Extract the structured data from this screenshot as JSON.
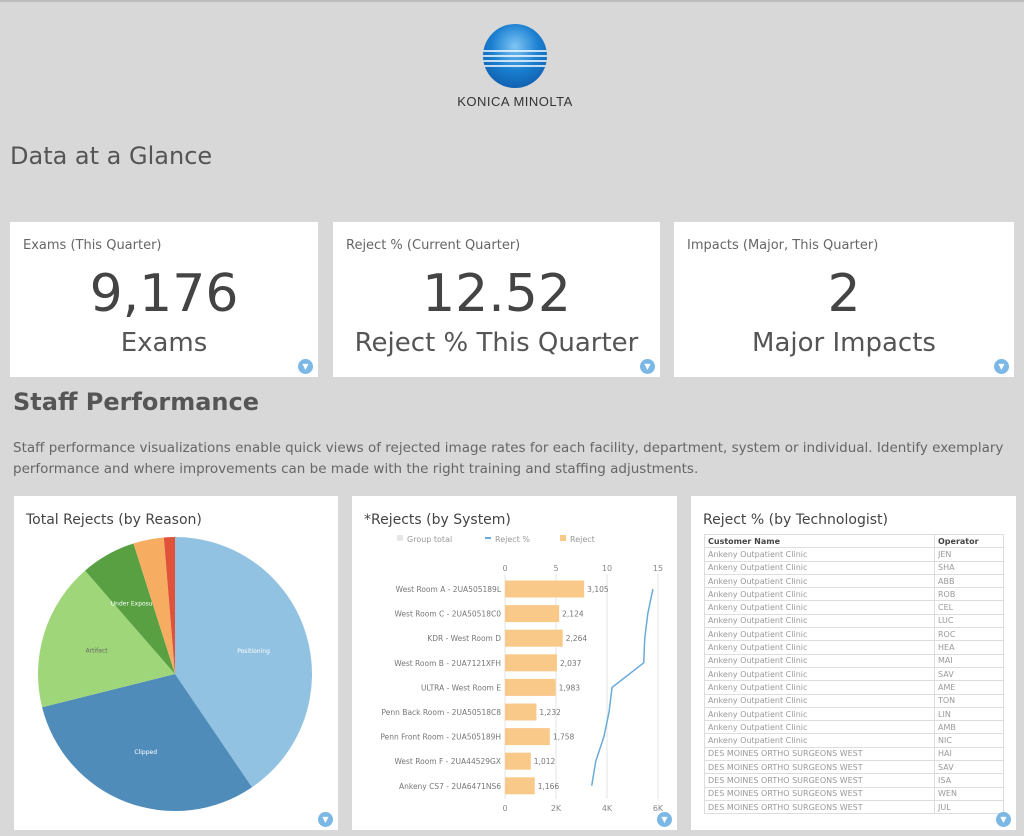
{
  "logo": {
    "text": "KONICA MINOLTA"
  },
  "page_title": "Data at a Glance",
  "kpis": [
    {
      "title": "Exams (This Quarter)",
      "value": "9,176",
      "unit": "Exams"
    },
    {
      "title": "Reject % (Current Quarter)",
      "value": "12.52",
      "unit": "Reject % This Quarter"
    },
    {
      "title": "Impacts (Major, This Quarter)",
      "value": "2",
      "unit": "Major Impacts"
    }
  ],
  "staff": {
    "title": "Staff Performance",
    "description": "Staff performance visualizations enable quick views of rejected image rates for each facility, department, system or individual. Identify exemplary performance and where improvements can be made with the right training and staffing adjustments."
  },
  "chart_data": [
    {
      "type": "pie",
      "title": "Total Rejects (by Reason)",
      "categories": [
        "Positioning",
        "Clipped",
        "Artifact",
        "Under Exposure",
        "",
        ""
      ],
      "values": [
        40.5,
        30.6,
        17.5,
        6.5,
        3.6,
        1.3
      ],
      "colors": [
        "#92c2e2",
        "#4f8cb9",
        "#a0d67a",
        "#58a042",
        "#f6ad62",
        "#e0533a"
      ]
    },
    {
      "type": "bar",
      "title": "*Rejects (by System)",
      "legend": [
        "Group total",
        "Reject %",
        "Reject"
      ],
      "legend_placement": "top",
      "categories": [
        "West Room A - 2UA505189L",
        "West Room C - 2UA50518C0",
        "KDR - West Room D",
        "West Room B  - 2UA7121XFH",
        "ULTRA - West Room E",
        "Penn Back Room - 2UA50518C8",
        "Penn Front Room -  2UA505189H",
        "West Room F - 2UA44529GX",
        "Ankeny CS7 - 2UA6471NS6"
      ],
      "series": [
        {
          "name": "Reject",
          "values": [
            3105,
            2124,
            2264,
            2037,
            1983,
            1232,
            1758,
            1012,
            1166
          ],
          "labels": [
            "3,105",
            "2,124",
            "2,264",
            "2,037",
            "1,983",
            "1,232",
            "1,758",
            "1,012",
            "1,166"
          ],
          "color": "#f9c98a"
        },
        {
          "name": "Reject %",
          "values": [
            14.5,
            14.0,
            13.7,
            13.6,
            10.5,
            10.2,
            9.7,
            8.9,
            8.5
          ],
          "color": "#6aaad8"
        }
      ],
      "x_bottom": {
        "range": [
          0,
          6000
        ],
        "ticks": [
          "0",
          "2K",
          "4K",
          "6K"
        ]
      },
      "x_top": {
        "range": [
          0,
          15
        ],
        "ticks": [
          "0",
          "5",
          "10",
          "15"
        ]
      },
      "grid": true
    },
    {
      "type": "table",
      "title": "Reject % (by Technologist)",
      "columns": [
        "Customer Name",
        "Operator"
      ],
      "rows": [
        [
          "Ankeny Outpatient Clinic",
          "JEN"
        ],
        [
          "Ankeny Outpatient Clinic",
          "SHA"
        ],
        [
          "Ankeny Outpatient Clinic",
          "ABB"
        ],
        [
          "Ankeny Outpatient Clinic",
          "ROB"
        ],
        [
          "Ankeny Outpatient Clinic",
          "CEL"
        ],
        [
          "Ankeny Outpatient Clinic",
          "LUC"
        ],
        [
          "Ankeny Outpatient Clinic",
          "ROC"
        ],
        [
          "Ankeny Outpatient Clinic",
          "HEA"
        ],
        [
          "Ankeny Outpatient Clinic",
          "MAI"
        ],
        [
          "Ankeny Outpatient Clinic",
          "SAV"
        ],
        [
          "Ankeny Outpatient Clinic",
          "AME"
        ],
        [
          "Ankeny Outpatient Clinic",
          "TON"
        ],
        [
          "Ankeny Outpatient Clinic",
          "LIN"
        ],
        [
          "Ankeny Outpatient Clinic",
          "AMB"
        ],
        [
          "Ankeny Outpatient Clinic",
          "NIC"
        ],
        [
          "DES MOINES ORTHO SURGEONS WEST",
          "HAI"
        ],
        [
          "DES MOINES ORTHO SURGEONS WEST",
          "SAV"
        ],
        [
          "DES MOINES ORTHO SURGEONS WEST",
          "ISA"
        ],
        [
          "DES MOINES ORTHO SURGEONS WEST",
          "WEN"
        ],
        [
          "DES MOINES ORTHO SURGEONS WEST",
          "JUL"
        ]
      ]
    }
  ],
  "icons": {
    "filter": "filter-icon"
  }
}
